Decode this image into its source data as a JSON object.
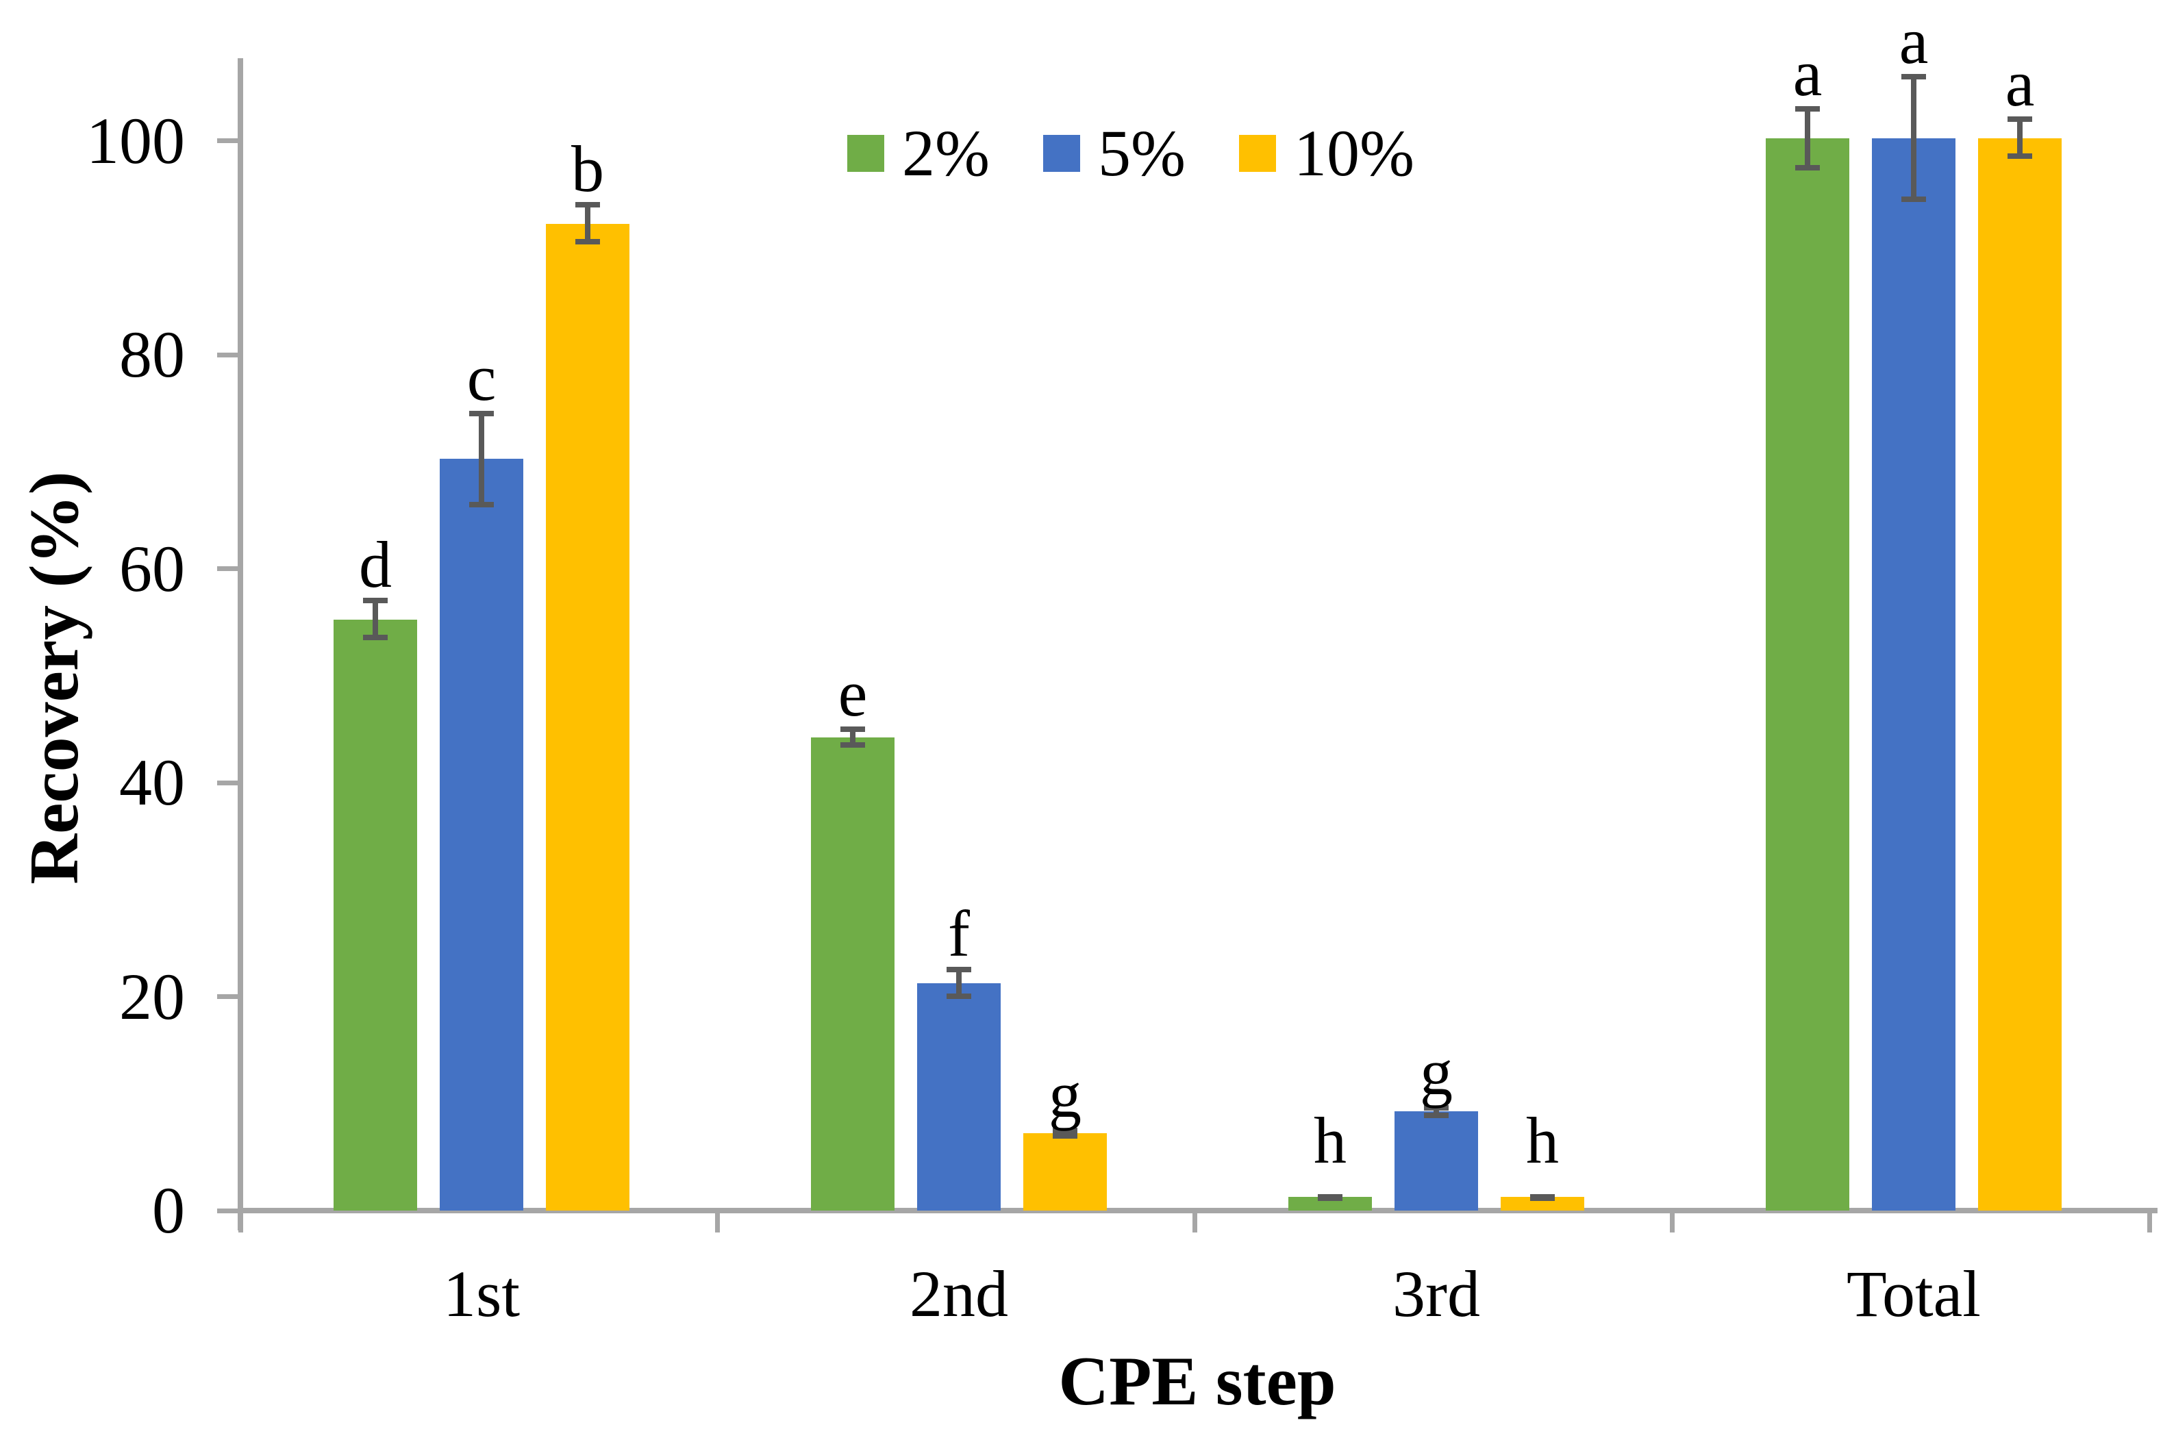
{
  "chart_data": {
    "type": "bar",
    "title": "",
    "categories": [
      "1st",
      "2nd",
      "3rd",
      "Total"
    ],
    "series": [
      {
        "name": "2%",
        "color": "#70AD47",
        "values": [
          55,
          44,
          1,
          100
        ],
        "errors": [
          2,
          1,
          0.3,
          3
        ],
        "letters": [
          "d",
          "e",
          "h",
          "a"
        ]
      },
      {
        "name": "5%",
        "color": "#4472C4",
        "values": [
          70,
          21,
          9,
          100
        ],
        "errors": [
          4.5,
          1.5,
          0.6,
          6
        ],
        "letters": [
          "c",
          "f",
          "g",
          "a"
        ]
      },
      {
        "name": "10%",
        "color": "#FFC000",
        "values": [
          92,
          7,
          1,
          100
        ],
        "errors": [
          2,
          0.5,
          0.3,
          2
        ],
        "letters": [
          "b",
          "g",
          "h",
          "a"
        ]
      }
    ],
    "xlabel": "CPE step",
    "ylabel": "Recovery (%)",
    "ylim": [
      0,
      110
    ],
    "yticks": [
      0,
      20,
      40,
      60,
      80,
      100
    ],
    "grid": false,
    "legend_position": "top-center",
    "error_bar_color": "#595959",
    "axis_color": "#A6A6A6",
    "text_color": "#000000"
  }
}
